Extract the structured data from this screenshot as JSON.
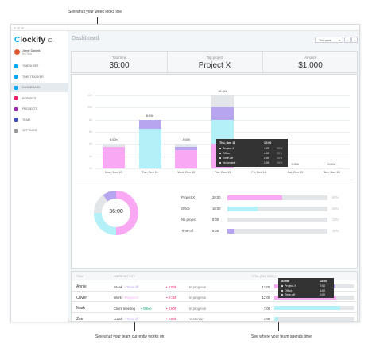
{
  "captions": {
    "top": "See what your week looks like",
    "bottom_left": "See what your team currently works on",
    "bottom_right": "See where your team spends time"
  },
  "app": {
    "logo_first": "C",
    "logo_rest": "lockify",
    "user": {
      "name": "Jamie Daniels",
      "team": "Sol Tech"
    },
    "nav": [
      {
        "label": "Timesheet",
        "color": "#03a9f4"
      },
      {
        "label": "Time tracker",
        "color": "#03a9f4"
      },
      {
        "label": "Dashboard",
        "color": "#03a9f4"
      },
      {
        "label": "Reports",
        "color": "#e91e63"
      },
      {
        "label": "Projects",
        "color": "#9c27b0"
      },
      {
        "label": "Team",
        "color": "#3f51b5"
      },
      {
        "label": "Settings",
        "color": "#999999"
      }
    ]
  },
  "dashboard": {
    "title": "Dashboard",
    "week_select": "This week",
    "prev": "‹",
    "next": "›",
    "stats": [
      {
        "label": "Total time",
        "value": "36:00"
      },
      {
        "label": "Top project",
        "value": "Project X"
      },
      {
        "label": "Amount",
        "value": "$1,000"
      }
    ]
  },
  "chart_data": {
    "type": "bar",
    "stacked": true,
    "categories": [
      "Mon, Dec 10",
      "Tue, Dec 11",
      "Wed, Dec 12",
      "Thu, Dec 13",
      "Fri, Dec 14",
      "Sat, Dec 15",
      "Sun, Dec 16"
    ],
    "totals_labels": [
      "4:00h",
      "8:00h",
      "4:00h",
      "12:00h",
      "0:00h",
      "0:00h",
      "0:00h"
    ],
    "ytick_labels": [
      "12h",
      "10h",
      "8h",
      "6h",
      "4h",
      "2h",
      "0h"
    ],
    "ylim": [
      0,
      12
    ],
    "series": [
      {
        "color": "#f9a8f4",
        "values": [
          3.5,
          0,
          3,
          4,
          0,
          0,
          0
        ]
      },
      {
        "color": "#b3f0f8",
        "values": [
          0,
          6.5,
          0,
          4,
          0,
          0,
          0
        ]
      },
      {
        "color": "#b7a6ef",
        "values": [
          0,
          1.5,
          0.5,
          2,
          0,
          0,
          0
        ]
      },
      {
        "color": "#e3e6e8",
        "values": [
          0.5,
          0,
          0.5,
          2,
          0,
          0,
          0
        ]
      }
    ]
  },
  "tooltip": {
    "title": "Thu, Dec 13",
    "total": "12:00",
    "rows": [
      {
        "name": "Project X",
        "time": "4:00",
        "pct": "35%"
      },
      {
        "name": "Office",
        "time": "4:00",
        "pct": "35%"
      },
      {
        "name": "Time-off",
        "time": "2:00",
        "pct": "15%"
      },
      {
        "name": "No project",
        "time": "2:00",
        "pct": "15%"
      }
    ]
  },
  "donut": {
    "center": "36:00",
    "slices": [
      {
        "name": "Project X",
        "color": "#f9a8f4",
        "value": 50
      },
      {
        "name": "Office",
        "color": "#b3f0f8",
        "value": 25
      },
      {
        "name": "No project",
        "color": "#e3e6e8",
        "value": 15
      },
      {
        "name": "Time-off",
        "color": "#b7a6ef",
        "value": 10
      }
    ],
    "legend": [
      {
        "name": "Project X",
        "time": "20:00",
        "pct": "50%",
        "color": "#f9a8f4",
        "fraction": 0.55
      },
      {
        "name": "Office",
        "time": "10:00",
        "pct": "25%",
        "color": "#b3f0f8",
        "fraction": 0.3
      },
      {
        "name": "No project",
        "time": "5:00",
        "pct": "15%",
        "color": "#e3e6e8",
        "fraction": 0.15
      },
      {
        "name": "Time-off",
        "time": "5:00",
        "pct": "10%",
        "color": "#b7a6ef",
        "fraction": 0.07
      }
    ]
  },
  "team": {
    "headers": {
      "team": "Team",
      "latest": "Latest activity",
      "total": "Total (this week)"
    },
    "rows": [
      {
        "name": "Annie",
        "activity": "Break",
        "project": "• Time-off",
        "project_color": "#b7a6ef",
        "time": "• 4:00h",
        "time_color": "#e91e63",
        "status": "In progress",
        "total": "13:00",
        "segments": [
          {
            "color": "#f9a8f4",
            "frac": 0.17
          },
          {
            "color": "#b3f0f8",
            "frac": 0.42
          },
          {
            "color": "#b7a6ef",
            "frac": 0.18
          },
          {
            "color": "#e3e6e8",
            "frac": 0.1
          }
        ]
      },
      {
        "name": "Oliver",
        "activity": "Work",
        "project": "• Project X",
        "project_color": "#f9a8f4",
        "time": "• 0:15h",
        "time_color": "#e91e63",
        "status": "In progress",
        "total": "12:00",
        "segments": [
          {
            "color": "#f9a8f4",
            "frac": 0.78
          },
          {
            "color": "#e3e6e8",
            "frac": 0.22
          }
        ]
      },
      {
        "name": "Mark",
        "activity": "Client meeting",
        "project": "• Office",
        "project_color": "#0aa36e",
        "time": "• 8:00h",
        "time_color": "#e91e63",
        "status": "In progress",
        "total": "7:00",
        "segments": [
          {
            "color": "#b3f0f8",
            "frac": 0.83
          },
          {
            "color": "#e3e6e8",
            "frac": 0.17
          }
        ]
      },
      {
        "name": "Zoe",
        "activity": "Lunch",
        "project": "• Time-off",
        "project_color": "#b7a6ef",
        "time": "• 2:00h",
        "time_color": "#e91e63",
        "status": "Yesterday",
        "total": "4:00",
        "segments": [
          {
            "color": "#b3f0f8",
            "frac": 0.05
          },
          {
            "color": "#e3e6e8",
            "frac": 0.95
          }
        ]
      }
    ],
    "tooltip": {
      "name": "Annie",
      "total": "13:00",
      "rows": [
        {
          "name": "Project X",
          "time": "2:00"
        },
        {
          "name": "Office",
          "time": "4:00"
        },
        {
          "name": "Time-off",
          "time": "2:00"
        }
      ]
    }
  }
}
